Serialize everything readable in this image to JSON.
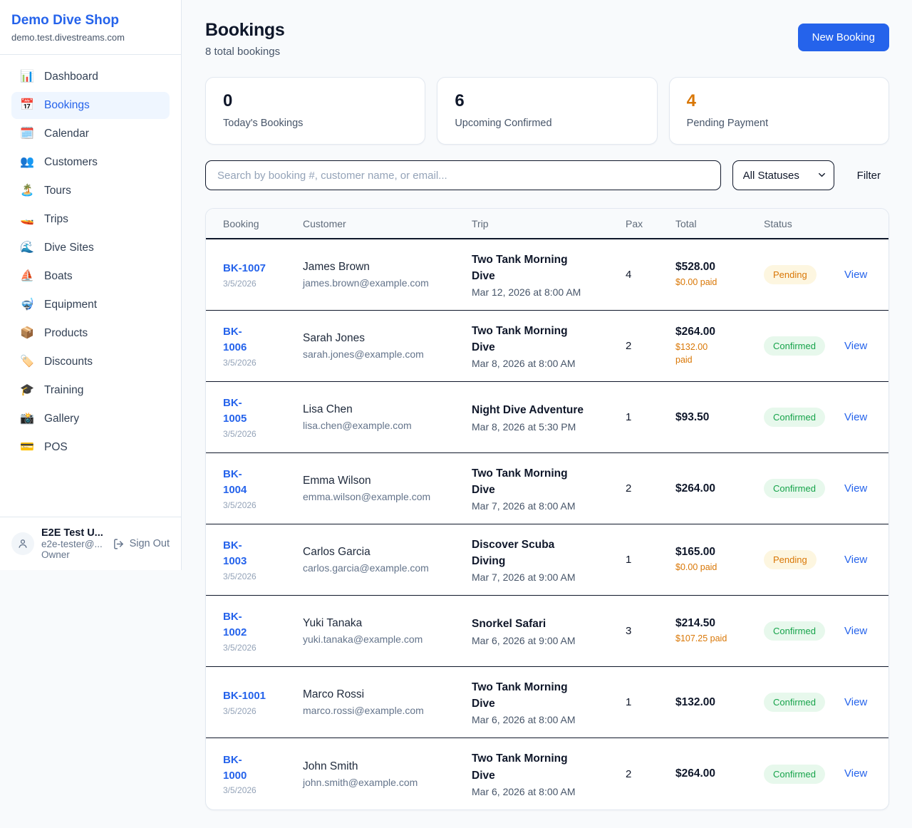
{
  "sidebar": {
    "brand": "Demo Dive Shop",
    "domain": "demo.test.divestreams.com",
    "items": [
      {
        "icon": "📊",
        "icon_name": "bar-chart-icon",
        "label": "Dashboard",
        "active": false
      },
      {
        "icon": "📅",
        "icon_name": "calendar-date-icon",
        "label": "Bookings",
        "active": true
      },
      {
        "icon": "🗓️",
        "icon_name": "spiral-calendar-icon",
        "label": "Calendar",
        "active": false
      },
      {
        "icon": "👥",
        "icon_name": "people-icon",
        "label": "Customers",
        "active": false
      },
      {
        "icon": "🏝️",
        "icon_name": "island-icon",
        "label": "Tours",
        "active": false
      },
      {
        "icon": "🚤",
        "icon_name": "speedboat-icon",
        "label": "Trips",
        "active": false
      },
      {
        "icon": "🌊",
        "icon_name": "wave-icon",
        "label": "Dive Sites",
        "active": false
      },
      {
        "icon": "⛵",
        "icon_name": "sailboat-icon",
        "label": "Boats",
        "active": false
      },
      {
        "icon": "🤿",
        "icon_name": "diving-mask-icon",
        "label": "Equipment",
        "active": false
      },
      {
        "icon": "📦",
        "icon_name": "package-icon",
        "label": "Products",
        "active": false
      },
      {
        "icon": "🏷️",
        "icon_name": "tag-icon",
        "label": "Discounts",
        "active": false
      },
      {
        "icon": "🎓",
        "icon_name": "graduation-cap-icon",
        "label": "Training",
        "active": false
      },
      {
        "icon": "📸",
        "icon_name": "camera-icon",
        "label": "Gallery",
        "active": false
      },
      {
        "icon": "💳",
        "icon_name": "credit-card-icon",
        "label": "POS",
        "active": false
      }
    ],
    "user": {
      "name": "E2E Test U...",
      "email": "e2e-tester@...",
      "role": "Owner",
      "sign_out": "Sign Out"
    }
  },
  "header": {
    "title": "Bookings",
    "subtitle": "8 total bookings",
    "new_booking": "New Booking"
  },
  "stats": [
    {
      "value": "0",
      "label": "Today's Bookings",
      "color": "#0f172a"
    },
    {
      "value": "6",
      "label": "Upcoming Confirmed",
      "color": "#0f172a"
    },
    {
      "value": "4",
      "label": "Pending Payment",
      "color": "#d97706"
    }
  ],
  "filters": {
    "search_placeholder": "Search by booking #, customer name, or email...",
    "status_select": "All Statuses",
    "filter_label": "Filter"
  },
  "table": {
    "columns": [
      "Booking",
      "Customer",
      "Trip",
      "Pax",
      "Total",
      "Status"
    ],
    "view_label": "View",
    "rows": [
      {
        "id": "BK-1007",
        "id_wrapped": false,
        "date": "3/5/2026",
        "customer": "James Brown",
        "email": "james.brown@example.com",
        "trip": "Two Tank Morning Dive",
        "trip_time": "Mar 12, 2026 at 8:00 AM",
        "pax": "4",
        "total": "$528.00",
        "paid": "$0.00 paid",
        "paid_wrapped": false,
        "status": "Pending"
      },
      {
        "id": "BK-1006",
        "id_wrapped": true,
        "date": "3/5/2026",
        "customer": "Sarah Jones",
        "email": "sarah.jones@example.com",
        "trip": "Two Tank Morning Dive",
        "trip_time": "Mar 8, 2026 at 8:00 AM",
        "pax": "2",
        "total": "$264.00",
        "paid": "$132.00 paid",
        "paid_wrapped": true,
        "status": "Confirmed"
      },
      {
        "id": "BK-1005",
        "id_wrapped": true,
        "date": "3/5/2026",
        "customer": "Lisa Chen",
        "email": "lisa.chen@example.com",
        "trip": "Night Dive Adventure",
        "trip_time": "Mar 8, 2026 at 5:30 PM",
        "pax": "1",
        "total": "$93.50",
        "paid": null,
        "paid_wrapped": false,
        "status": "Confirmed"
      },
      {
        "id": "BK-1004",
        "id_wrapped": true,
        "date": "3/5/2026",
        "customer": "Emma Wilson",
        "email": "emma.wilson@example.com",
        "trip": "Two Tank Morning Dive",
        "trip_time": "Mar 7, 2026 at 8:00 AM",
        "pax": "2",
        "total": "$264.00",
        "paid": null,
        "paid_wrapped": false,
        "status": "Confirmed"
      },
      {
        "id": "BK-1003",
        "id_wrapped": true,
        "date": "3/5/2026",
        "customer": "Carlos Garcia",
        "email": "carlos.garcia@example.com",
        "trip": "Discover Scuba Diving",
        "trip_time": "Mar 7, 2026 at 9:00 AM",
        "pax": "1",
        "total": "$165.00",
        "paid": "$0.00 paid",
        "paid_wrapped": false,
        "status": "Pending"
      },
      {
        "id": "BK-1002",
        "id_wrapped": true,
        "date": "3/5/2026",
        "customer": "Yuki Tanaka",
        "email": "yuki.tanaka@example.com",
        "trip": "Snorkel Safari",
        "trip_time": "Mar 6, 2026 at 9:00 AM",
        "pax": "3",
        "total": "$214.50",
        "paid": "$107.25 paid",
        "paid_wrapped": false,
        "status": "Confirmed"
      },
      {
        "id": "BK-1001",
        "id_wrapped": false,
        "date": "3/5/2026",
        "customer": "Marco Rossi",
        "email": "marco.rossi@example.com",
        "trip": "Two Tank Morning Dive",
        "trip_time": "Mar 6, 2026 at 8:00 AM",
        "pax": "1",
        "total": "$132.00",
        "paid": null,
        "paid_wrapped": false,
        "status": "Confirmed"
      },
      {
        "id": "BK-1000",
        "id_wrapped": true,
        "date": "3/5/2026",
        "customer": "John Smith",
        "email": "john.smith@example.com",
        "trip": "Two Tank Morning Dive",
        "trip_time": "Mar 6, 2026 at 8:00 AM",
        "pax": "2",
        "total": "$264.00",
        "paid": null,
        "paid_wrapped": false,
        "status": "Confirmed"
      }
    ]
  },
  "colors": {
    "accent_blue": "#2563eb",
    "pending_orange": "#d97706",
    "confirmed_green": "#16a34a",
    "page_background": "#f8fafc",
    "row_border": "#0f172a"
  }
}
